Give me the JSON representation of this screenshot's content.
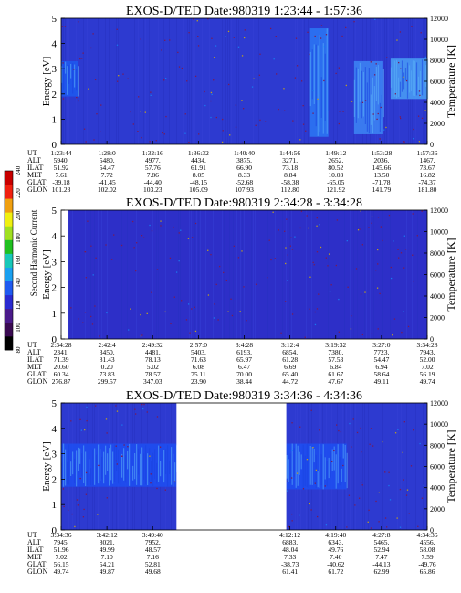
{
  "chart_data": [
    {
      "type": "heatmap",
      "title": "EXOS-D/TED  Date:980319  1:23:44 - 1:57:36",
      "ylabel": "Energy [eV]",
      "ylabel_right": "Temperature [K]",
      "ylim": [
        0,
        5
      ],
      "yticks": [
        "0",
        "1",
        "2",
        "3",
        "4",
        "5"
      ],
      "ylim_right": [
        0,
        12000
      ],
      "yticks_right": [
        "0",
        "2000",
        "4000",
        "6000",
        "8000",
        "10000",
        "12000"
      ],
      "background_color": "#2d3ad0",
      "data_gaps": [],
      "bands": [
        {
          "x_from": 0.0,
          "x_to": 0.045,
          "e_low": 1.9,
          "e_high": 3.3,
          "color": "#1d5af0"
        },
        {
          "x_from": 0.68,
          "x_to": 0.73,
          "e_low": 0.3,
          "e_high": 4.6,
          "color": "#2c78f4"
        },
        {
          "x_from": 0.8,
          "x_to": 0.88,
          "e_low": 0.4,
          "e_high": 3.3,
          "color": "#3d86f4"
        },
        {
          "x_from": 0.9,
          "x_to": 1.0,
          "e_low": 1.8,
          "e_high": 3.4,
          "color": "#4aa0f6"
        }
      ],
      "ephemeris": {
        "rows": [
          "UT",
          "ALT",
          "ILAT",
          "MLT",
          "GLAT",
          "GLON"
        ],
        "columns": [
          [
            "1:23:44",
            "5940.",
            "51.92",
            "7.61",
            "-39.18",
            "101.23"
          ],
          [
            "1:28:0",
            "5480.",
            "54.47",
            "7.72",
            "-41.45",
            "102.02"
          ],
          [
            "1:32:16",
            "4977.",
            "57.76",
            "7.86",
            "-44.40",
            "103.23"
          ],
          [
            "1:36:32",
            "4434.",
            "61.91",
            "8.05",
            "-48.15",
            "105.09"
          ],
          [
            "1:40:40",
            "3875.",
            "66.90",
            "8.33",
            "-52.68",
            "107.93"
          ],
          [
            "1:44:56",
            "3271.",
            "73.18",
            "8.84",
            "-58.38",
            "112.80"
          ],
          [
            "1:49:12",
            "2652.",
            "80.52",
            "10.03",
            "-65.05",
            "121.92"
          ],
          [
            "1:53:28",
            "2036.",
            "145.66",
            "13.50",
            "-71.78",
            "141.79"
          ],
          [
            "1:57:36",
            "1467.",
            "73.67",
            "16.82",
            "-74.37",
            "181.80"
          ]
        ]
      }
    },
    {
      "type": "heatmap",
      "title": "EXOS-D/TED  Date:980319  2:34:28 - 3:34:28",
      "ylabel": "Energy [eV]",
      "ylabel_right": "Temperature [K]",
      "ylim": [
        0,
        5
      ],
      "yticks": [
        "0",
        "1",
        "2",
        "3",
        "4",
        "5"
      ],
      "ylim_right": [
        0,
        12000
      ],
      "yticks_right": [
        "0",
        "2000",
        "4000",
        "6000",
        "8000",
        "10000",
        "12000"
      ],
      "background_color": "#2d2fc8",
      "data_gaps": [
        {
          "x_from": 0.0,
          "x_to": 0.02
        }
      ],
      "bands": [],
      "ephemeris": {
        "rows": [
          "UT",
          "ALT",
          "ILAT",
          "MLT",
          "GLAT",
          "GLON"
        ],
        "columns": [
          [
            "2:34:28",
            "2341.",
            "71.39",
            "20.60",
            "60.34",
            "276.87"
          ],
          [
            "2:42:4",
            "3450.",
            "81.43",
            "0.20",
            "73.83",
            "299.57"
          ],
          [
            "2:49:32",
            "4481.",
            "78.13",
            "5.02",
            "78.57",
            "347.03"
          ],
          [
            "2:57:0",
            "5403.",
            "71.63",
            "6.08",
            "75.11",
            "23.90"
          ],
          [
            "3:4:28",
            "6193.",
            "65.97",
            "6.47",
            "70.00",
            "38.44"
          ],
          [
            "3:12:4",
            "6854.",
            "61.28",
            "6.69",
            "65.40",
            "44.72"
          ],
          [
            "3:19:32",
            "7380.",
            "57.53",
            "6.84",
            "61.67",
            "47.67"
          ],
          [
            "3:27:0",
            "7723.",
            "54.47",
            "6.94",
            "58.64",
            "49.11"
          ],
          [
            "3:34:28",
            "7943.",
            "52.00",
            "7.02",
            "56.19",
            "49.74"
          ]
        ]
      }
    },
    {
      "type": "heatmap",
      "title": "EXOS-D/TED  Date:980319  3:34:36 - 4:34:36",
      "ylabel": "Energy [eV]",
      "ylabel_right": "Temperature [K]",
      "ylim": [
        0,
        5
      ],
      "yticks": [
        "0",
        "1",
        "2",
        "3",
        "4",
        "5"
      ],
      "ylim_right": [
        0,
        12000
      ],
      "yticks_right": [
        "0",
        "2000",
        "4000",
        "6000",
        "8000",
        "10000",
        "12000"
      ],
      "background_color": "#2d3ad0",
      "data_gaps": [
        {
          "x_from": 0.315,
          "x_to": 0.615
        }
      ],
      "bands": [
        {
          "x_from": 0.0,
          "x_to": 0.315,
          "e_low": 1.7,
          "e_high": 3.4,
          "color": "#1d4ff2"
        },
        {
          "x_from": 0.615,
          "x_to": 0.78,
          "e_low": 1.6,
          "e_high": 3.4,
          "color": "#1d4ff2"
        }
      ],
      "ephemeris": {
        "rows": [
          "UT",
          "ALT",
          "ILAT",
          "MLT",
          "GLAT",
          "GLON"
        ],
        "columns": [
          [
            "3:34:36",
            "7945.",
            "51.96",
            "7.02",
            "56.15",
            "49.74"
          ],
          [
            "3:42:12",
            "8021.",
            "49.99",
            "7.10",
            "54.21",
            "49.87"
          ],
          [
            "3:49:40",
            "7952.",
            "48.57",
            "7.16",
            "52.81",
            "49.68"
          ],
          [
            "",
            "",
            "",
            "",
            "",
            ""
          ],
          [
            "",
            "",
            "",
            "",
            "",
            ""
          ],
          [
            "4:12:12",
            "6883.",
            "48.04",
            "7.33",
            "-38.73",
            "61.41"
          ],
          [
            "4:19:40",
            "6343.",
            "49.76",
            "7.40",
            "-40.62",
            "61.72"
          ],
          [
            "4:27:8",
            "5465.",
            "52.94",
            "7.47",
            "-44.13",
            "62.99"
          ],
          [
            "4:34:36",
            "4556.",
            "58.08",
            "7.59",
            "-49.76",
            "65.86"
          ]
        ]
      }
    }
  ],
  "colorbar": {
    "label": "Second Harmonic Current",
    "ticks": [
      "80",
      "100",
      "120",
      "140",
      "160",
      "180",
      "200",
      "220",
      "240"
    ],
    "colors": [
      "#000000",
      "#3a0a52",
      "#4a1a8a",
      "#2a2ad0",
      "#1f5af0",
      "#1aa0f0",
      "#18c8b8",
      "#20c020",
      "#a0e020",
      "#f0f010",
      "#f0a010",
      "#f02010",
      "#c80000"
    ]
  }
}
